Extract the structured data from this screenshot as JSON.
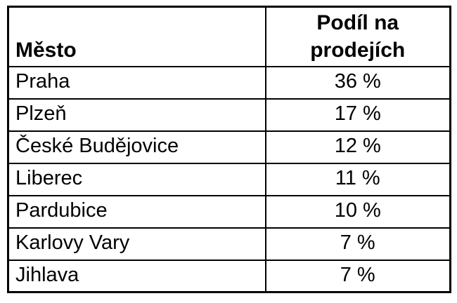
{
  "chart_data": {
    "type": "table",
    "columns": [
      "Město",
      "Podíl na prodejích"
    ],
    "rows": [
      [
        "Praha",
        "36 %"
      ],
      [
        "Plzeň",
        "17 %"
      ],
      [
        "České Budějovice",
        "12 %"
      ],
      [
        "Liberec",
        "11 %"
      ],
      [
        "Pardubice",
        "10 %"
      ],
      [
        "Karlovy Vary",
        "7 %"
      ],
      [
        "Jihlava",
        "7 %"
      ]
    ],
    "values_percent": [
      36,
      17,
      12,
      11,
      10,
      7,
      7
    ],
    "layout": {
      "border_color": "#000000",
      "text_color": "#000000",
      "background": "#ffffff",
      "header_bold": true
    }
  },
  "table": {
    "header": {
      "city": "Město",
      "share_line1": "Podíl na",
      "share_line2": "prodejích"
    },
    "rows": [
      {
        "city": "Praha",
        "share": "36 %"
      },
      {
        "city": "Plzeň",
        "share": "17 %"
      },
      {
        "city": "České Budějovice",
        "share": "12 %"
      },
      {
        "city": "Liberec",
        "share": "11 %"
      },
      {
        "city": "Pardubice",
        "share": "10 %"
      },
      {
        "city": "Karlovy Vary",
        "share": "7 %"
      },
      {
        "city": "Jihlava",
        "share": "7 %"
      }
    ]
  }
}
